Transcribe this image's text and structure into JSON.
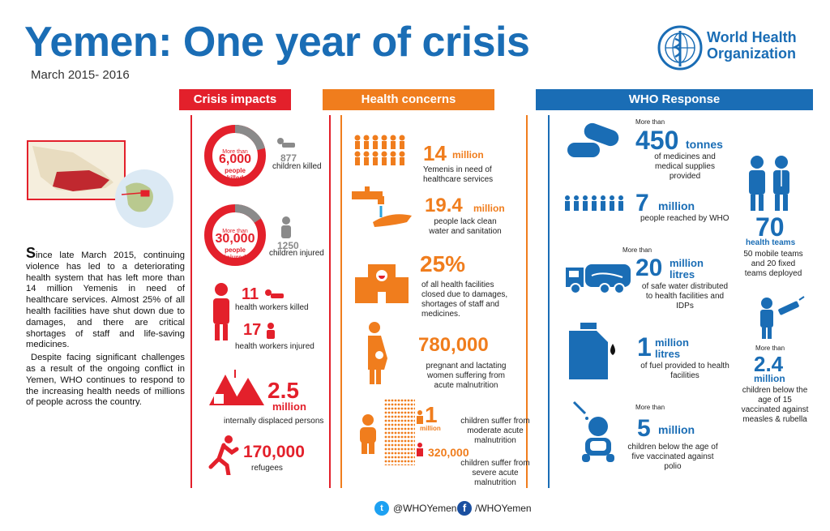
{
  "header": {
    "title": "Yemen: One year of crisis",
    "subtitle": "March 2015- 2016",
    "org_line1": "World Health",
    "org_line2": "Organization"
  },
  "sections": {
    "crisis": "Crisis impacts",
    "health": "Health concerns",
    "response": "WHO Response"
  },
  "intro": {
    "p1_cap": "S",
    "p1": "ince late March 2015, continuing violence has led to a deteriorating health system that has left more than 14 million Yemenis in need of healthcare services. Almost 25% of all health facilities have shut down due to damages, and there are critical shortages of staff and life-saving medicines.",
    "p2": "Despite facing significant challenges as a result of the ongoing conflict in Yemen, WHO continues to respond to the increasing health needs of millions of people across the country."
  },
  "crisis": {
    "killed_prefix": "More than",
    "killed_value": "6,000",
    "killed_unit": "people killed",
    "children_killed_value": "877",
    "children_killed_label": "children killed",
    "injured_prefix": "More than",
    "injured_value": "30,000",
    "injured_unit": "people injured",
    "children_injured_value": "1250",
    "children_injured_label": "children injured",
    "hw_killed_value": "11",
    "hw_killed_label": "health workers killed",
    "hw_injured_value": "17",
    "hw_injured_label": "health workers injured",
    "idp_value": "2.5",
    "idp_unit": "million",
    "idp_label": "internally displaced persons",
    "refugees_value": "170,000",
    "refugees_label": "refugees"
  },
  "health": {
    "need_value": "14",
    "need_unit": "million",
    "need_label": "Yemenis in need of healthcare services",
    "water_value": "19.4",
    "water_unit": "million",
    "water_label": "people lack clean water and sanitation",
    "facilities_value": "25%",
    "facilities_label": "of all health facilities closed due to damages, shortages of staff and medicines.",
    "women_value": "780,000",
    "women_label": "pregnant and lactating women suffering from acute malnutrition",
    "mam_value": "1",
    "mam_unit": "million",
    "mam_label": "children suffer from moderate acute malnutrition",
    "sam_value": "320,000",
    "sam_label": "children suffer from severe acute malnutrition"
  },
  "response": {
    "medicines_prefix": "More than",
    "medicines_value": "450",
    "medicines_unit": "tonnes",
    "medicines_label": "of medicines and medical supplies provided",
    "reached_value": "7",
    "reached_unit": "million",
    "reached_label": "people reached by WHO",
    "water_prefix": "More than",
    "water_value": "20",
    "water_unit1": "million",
    "water_unit2": "litres",
    "water_label": "of safe water distributed to health facilities and IDPs",
    "fuel_value": "1",
    "fuel_unit1": "million",
    "fuel_unit2": "litres",
    "fuel_label": "of fuel provided to health facilities",
    "polio_prefix": "More than",
    "polio_value": "5",
    "polio_unit": "million",
    "polio_label": "children below the age of five vaccinated against polio",
    "teams_value": "70",
    "teams_unit": "health teams",
    "teams_label": "50 mobile teams and 20 fixed teams deployed",
    "measles_prefix": "More than",
    "measles_value": "2.4",
    "measles_unit": "million",
    "measles_label": "children below the age of 15 vaccinated against measles & rubella"
  },
  "footer": {
    "twitter": "@WHOYemen",
    "facebook": "/WHOYemen"
  },
  "colors": {
    "blue": "#1a6db5",
    "red": "#e3202b",
    "orange": "#f07d1d",
    "grey": "#8a8a8a"
  }
}
